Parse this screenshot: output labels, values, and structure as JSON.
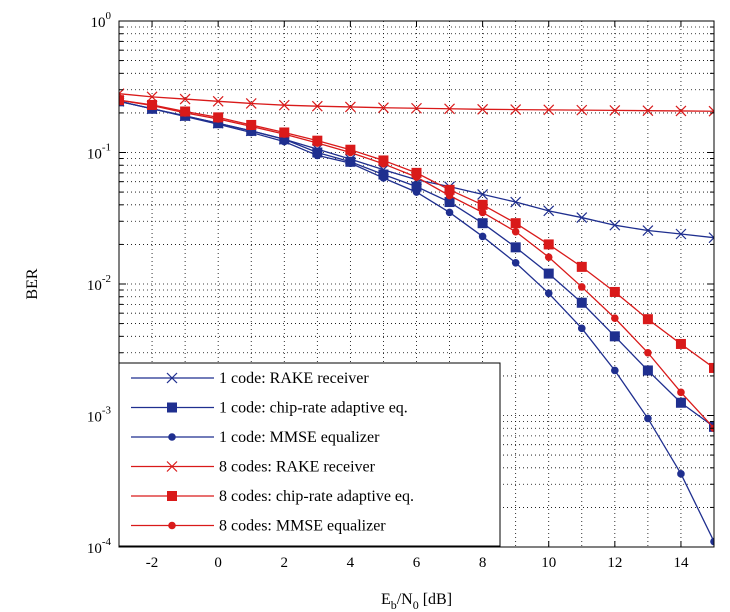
{
  "chart_data": {
    "type": "line",
    "title": "",
    "xlabel": {
      "main": "E",
      "sub1": "b",
      "mid": "/N",
      "sub2": "0",
      "tail": " [dB]"
    },
    "ylabel": "BER",
    "xlim": [
      -3,
      15
    ],
    "ylim": [
      0.0001,
      1
    ],
    "yscale": "log",
    "grid": true,
    "legend_position": "bottom-left",
    "x_ticks": [
      -2,
      0,
      2,
      4,
      6,
      8,
      10,
      12,
      14
    ],
    "x_tick_labels": [
      "-2",
      "0",
      "2",
      "4",
      "6",
      "8",
      "10",
      "12",
      "14"
    ],
    "y_ticks": [
      0.0001,
      0.001,
      0.01,
      0.1,
      1
    ],
    "y_tick_labels": [
      {
        "base": "10",
        "exp": "-4"
      },
      {
        "base": "10",
        "exp": "-3"
      },
      {
        "base": "10",
        "exp": "-2"
      },
      {
        "base": "10",
        "exp": "-1"
      },
      {
        "base": "10",
        "exp": "0"
      }
    ],
    "x": [
      -3,
      -2,
      -1,
      0,
      1,
      2,
      3,
      4,
      5,
      6,
      7,
      8,
      9,
      10,
      11,
      12,
      13,
      14,
      15
    ],
    "series": [
      {
        "name": "1 code: RAKE receiver",
        "color": "#1f2f8f",
        "marker": "x",
        "values": [
          0.245,
          0.215,
          0.19,
          0.167,
          0.146,
          0.126,
          0.106,
          0.089,
          0.074,
          0.062,
          0.055,
          0.048,
          0.042,
          0.036,
          0.032,
          0.028,
          0.0255,
          0.024,
          0.0225
        ]
      },
      {
        "name": "1 code: chip-rate adaptive eq.",
        "color": "#1f2f8f",
        "marker": "square",
        "values": [
          0.245,
          0.215,
          0.19,
          0.167,
          0.146,
          0.126,
          0.1,
          0.085,
          0.068,
          0.055,
          0.042,
          0.029,
          0.019,
          0.012,
          0.0072,
          0.004,
          0.0022,
          0.00125,
          0.00082
        ]
      },
      {
        "name": "1 code: MMSE equalizer",
        "color": "#1f2f8f",
        "marker": "circle",
        "values": [
          0.245,
          0.215,
          0.188,
          0.164,
          0.142,
          0.121,
          0.095,
          0.083,
          0.064,
          0.05,
          0.035,
          0.023,
          0.0145,
          0.0085,
          0.0046,
          0.0022,
          0.00095,
          0.00036,
          0.00011
        ]
      },
      {
        "name": "8 codes: RAKE receiver",
        "color": "#d91a1a",
        "marker": "x",
        "values": [
          0.28,
          0.265,
          0.255,
          0.245,
          0.236,
          0.229,
          0.225,
          0.222,
          0.219,
          0.217,
          0.215,
          0.213,
          0.212,
          0.211,
          0.21,
          0.209,
          0.208,
          0.207,
          0.206
        ]
      },
      {
        "name": "8 codes: chip-rate adaptive eq.",
        "color": "#d91a1a",
        "marker": "square",
        "values": [
          0.25,
          0.23,
          0.205,
          0.185,
          0.162,
          0.142,
          0.123,
          0.105,
          0.087,
          0.07,
          0.052,
          0.04,
          0.029,
          0.02,
          0.0135,
          0.0087,
          0.0054,
          0.0035,
          0.0023
        ]
      },
      {
        "name": "8 codes: MMSE equalizer",
        "color": "#d91a1a",
        "marker": "circle",
        "values": [
          0.25,
          0.228,
          0.2,
          0.18,
          0.158,
          0.138,
          0.118,
          0.1,
          0.082,
          0.065,
          0.047,
          0.035,
          0.025,
          0.016,
          0.0095,
          0.0055,
          0.003,
          0.0015,
          0.0008
        ]
      }
    ]
  }
}
